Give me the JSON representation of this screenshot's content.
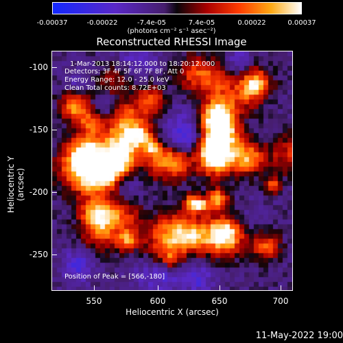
{
  "colorbar": {
    "ticks": [
      "-0.00037",
      "-0.00022",
      "-7.4e-05",
      "7.4e-05",
      "0.00022",
      "0.00037"
    ],
    "units": "(photons cm⁻² s⁻¹ asec⁻²)"
  },
  "title": "Reconstructed RHESSI Image",
  "info": {
    "line1": "1-Mar-2013 18:14:12.000 to 18:20:12.000",
    "line2": "Detectors: 3F 4F 5F 6F 7F 8F, Att 0",
    "line3": "Energy Range: 12.0 - 25.0 keV",
    "line4": "Clean     Total counts: 8.72E+03",
    "peak": "Position of Peak = [566,-180]"
  },
  "axes": {
    "x_title": "Heliocentric X (arcsec)",
    "y_title": "Heliocentric Y (arcsec)",
    "x_ticks": [
      "550",
      "600",
      "650",
      "700"
    ],
    "y_ticks": [
      "-100",
      "-150",
      "-200",
      "-250"
    ]
  },
  "footer_date": "11-May-2022 19:00",
  "chart_data": {
    "type": "heatmap",
    "title": "Reconstructed RHESSI Image",
    "xlabel": "Heliocentric X (arcsec)",
    "ylabel": "Heliocentric Y (arcsec)",
    "xlim": [
      516,
      706
    ],
    "ylim": [
      -282,
      -92
    ],
    "colorscale_range": [
      -0.00037,
      0.00037
    ],
    "peak_position": [
      566,
      -180
    ]
  }
}
